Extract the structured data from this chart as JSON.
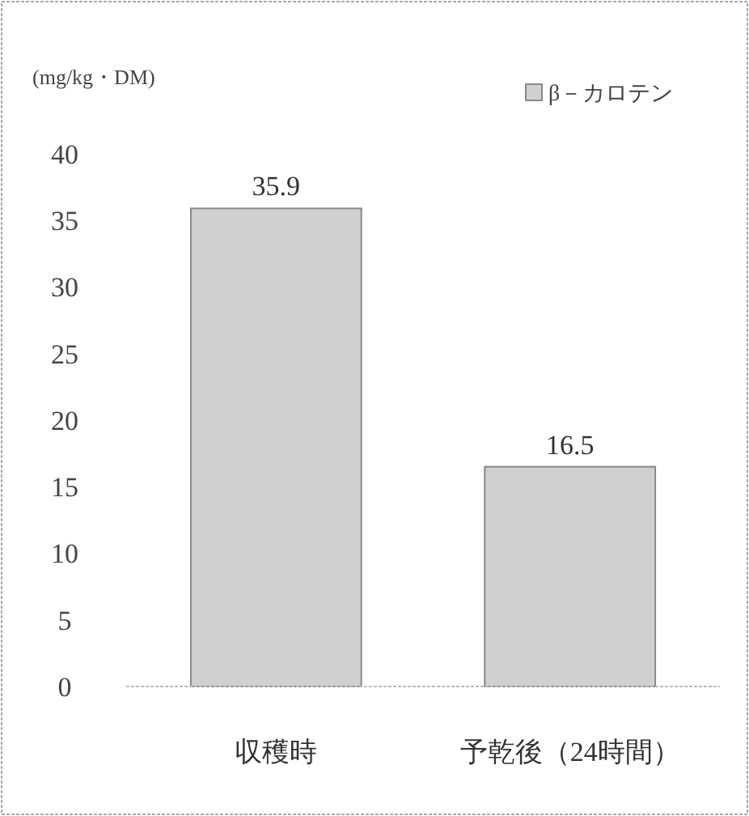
{
  "chart_data": {
    "type": "bar",
    "ylabel": "(mg/kg・DM)",
    "categories": [
      "収穫時",
      "予乾後（24時間）"
    ],
    "series": [
      {
        "name": "β－カロテン",
        "color": "#d0d0d0",
        "values": [
          35.9,
          16.5
        ]
      }
    ],
    "ylim": [
      0,
      40
    ],
    "yticks": [
      0,
      5,
      10,
      15,
      20,
      25,
      30,
      35,
      40
    ],
    "data_labels": true,
    "legend": "top right",
    "grid": false
  }
}
